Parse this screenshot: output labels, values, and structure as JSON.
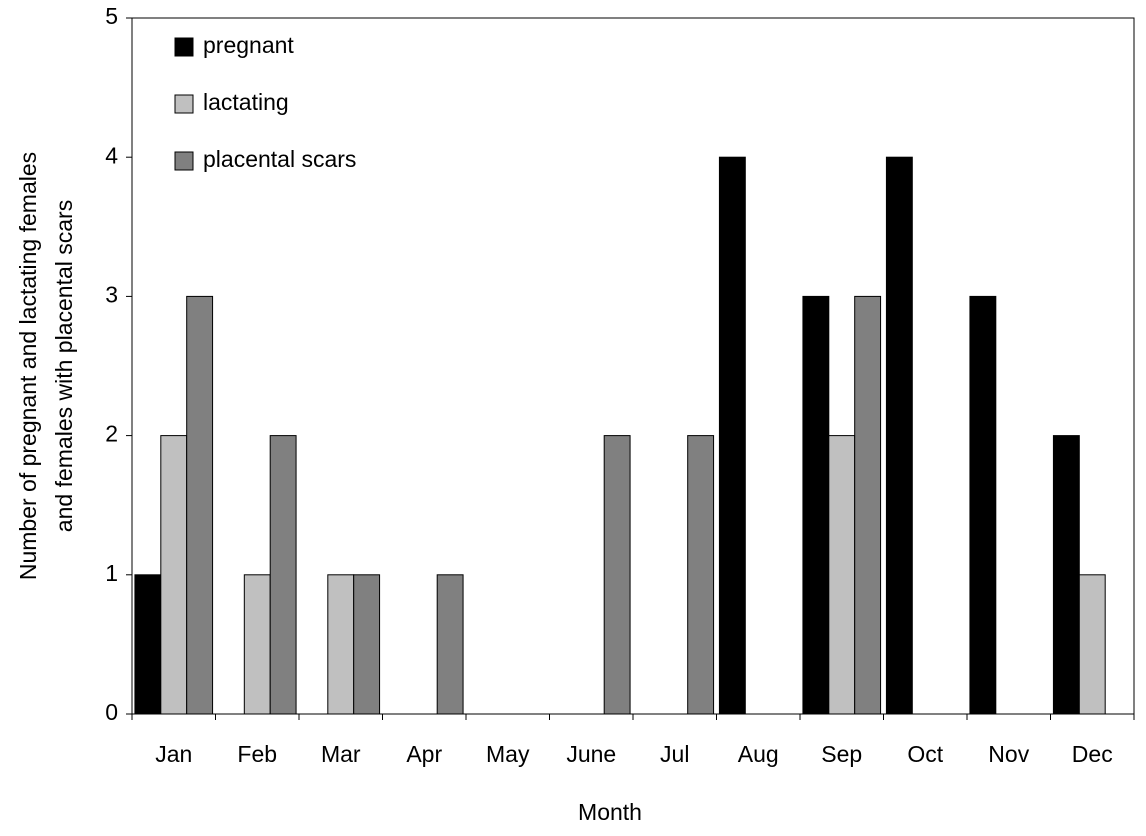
{
  "chart_data": {
    "type": "bar",
    "y_label": [
      "Number of pregnant and lactating females",
      "and females with placental scars"
    ],
    "x_label": "Month",
    "categories": [
      "Jan",
      "Feb",
      "Mar",
      "Apr",
      "May",
      "June",
      "Jul",
      "Aug",
      "Sep",
      "Oct",
      "Nov",
      "Dec"
    ],
    "series": [
      {
        "name": "pregnant",
        "color": "#000000",
        "values": [
          1,
          0,
          0,
          0,
          0,
          0,
          0,
          4,
          3,
          4,
          3,
          2
        ]
      },
      {
        "name": "lactating",
        "color": "#c0c0c0",
        "values": [
          2,
          1,
          1,
          0,
          0,
          0,
          0,
          0,
          2,
          0,
          0,
          1
        ]
      },
      {
        "name": "placental scars",
        "color": "#808080",
        "values": [
          3,
          2,
          1,
          1,
          0,
          2,
          2,
          0,
          3,
          0,
          0,
          0
        ]
      }
    ],
    "ylim": [
      0,
      5
    ],
    "yticks": [
      0,
      1,
      2,
      3,
      4,
      5
    ],
    "grid": false,
    "legend": "upper left"
  }
}
